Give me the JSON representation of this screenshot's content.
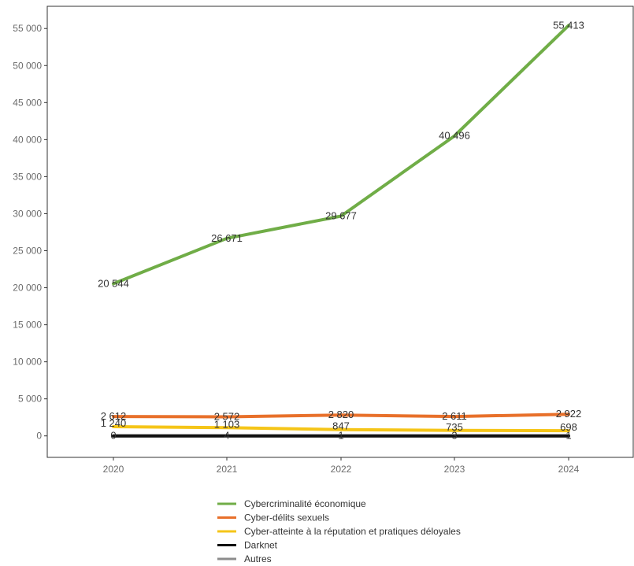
{
  "chart_data": {
    "type": "line",
    "title": "",
    "xlabel": "",
    "ylabel": "",
    "x": [
      "2020",
      "2021",
      "2022",
      "2023",
      "2024"
    ],
    "ylim": [
      -2900,
      58000
    ],
    "yticks": [
      0,
      5000,
      10000,
      15000,
      20000,
      25000,
      30000,
      35000,
      40000,
      45000,
      50000,
      55000
    ],
    "ytick_labels": [
      "0",
      "5 000",
      "10 000",
      "15 000",
      "20 000",
      "25 000",
      "30 000",
      "35 000",
      "40 000",
      "45 000",
      "50 000",
      "55 000"
    ],
    "grid": false,
    "legend_position": "bottom",
    "series": [
      {
        "name": "Cybercriminalité économique",
        "color": "#70ad47",
        "values": [
          20544,
          26671,
          29677,
          40496,
          55413
        ],
        "labels": [
          "20 544",
          "26 671",
          "29 677",
          "40 496",
          "55 413"
        ]
      },
      {
        "name": "Cyber-délits sexuels",
        "color": "#e8702a",
        "values": [
          2612,
          2572,
          2820,
          2611,
          2922
        ],
        "labels": [
          "2 612",
          "2 572",
          "2 820",
          "2 611",
          "2 922"
        ]
      },
      {
        "name": "Cyber-atteinte à la réputation et pratiques déloyales",
        "color": "#f5c518",
        "values": [
          1240,
          1103,
          847,
          735,
          698
        ],
        "labels": [
          "1 240",
          "1 103",
          "847",
          "735",
          "698"
        ]
      },
      {
        "name": "Darknet",
        "color": "#111111",
        "values": [
          0,
          4,
          1,
          3,
          1
        ],
        "labels": []
      },
      {
        "name": "Autres",
        "color": "#8c8c8c",
        "values": [
          0,
          4,
          1,
          3,
          1
        ],
        "labels": [
          "0",
          "4",
          "1",
          "3",
          "1"
        ]
      }
    ]
  }
}
